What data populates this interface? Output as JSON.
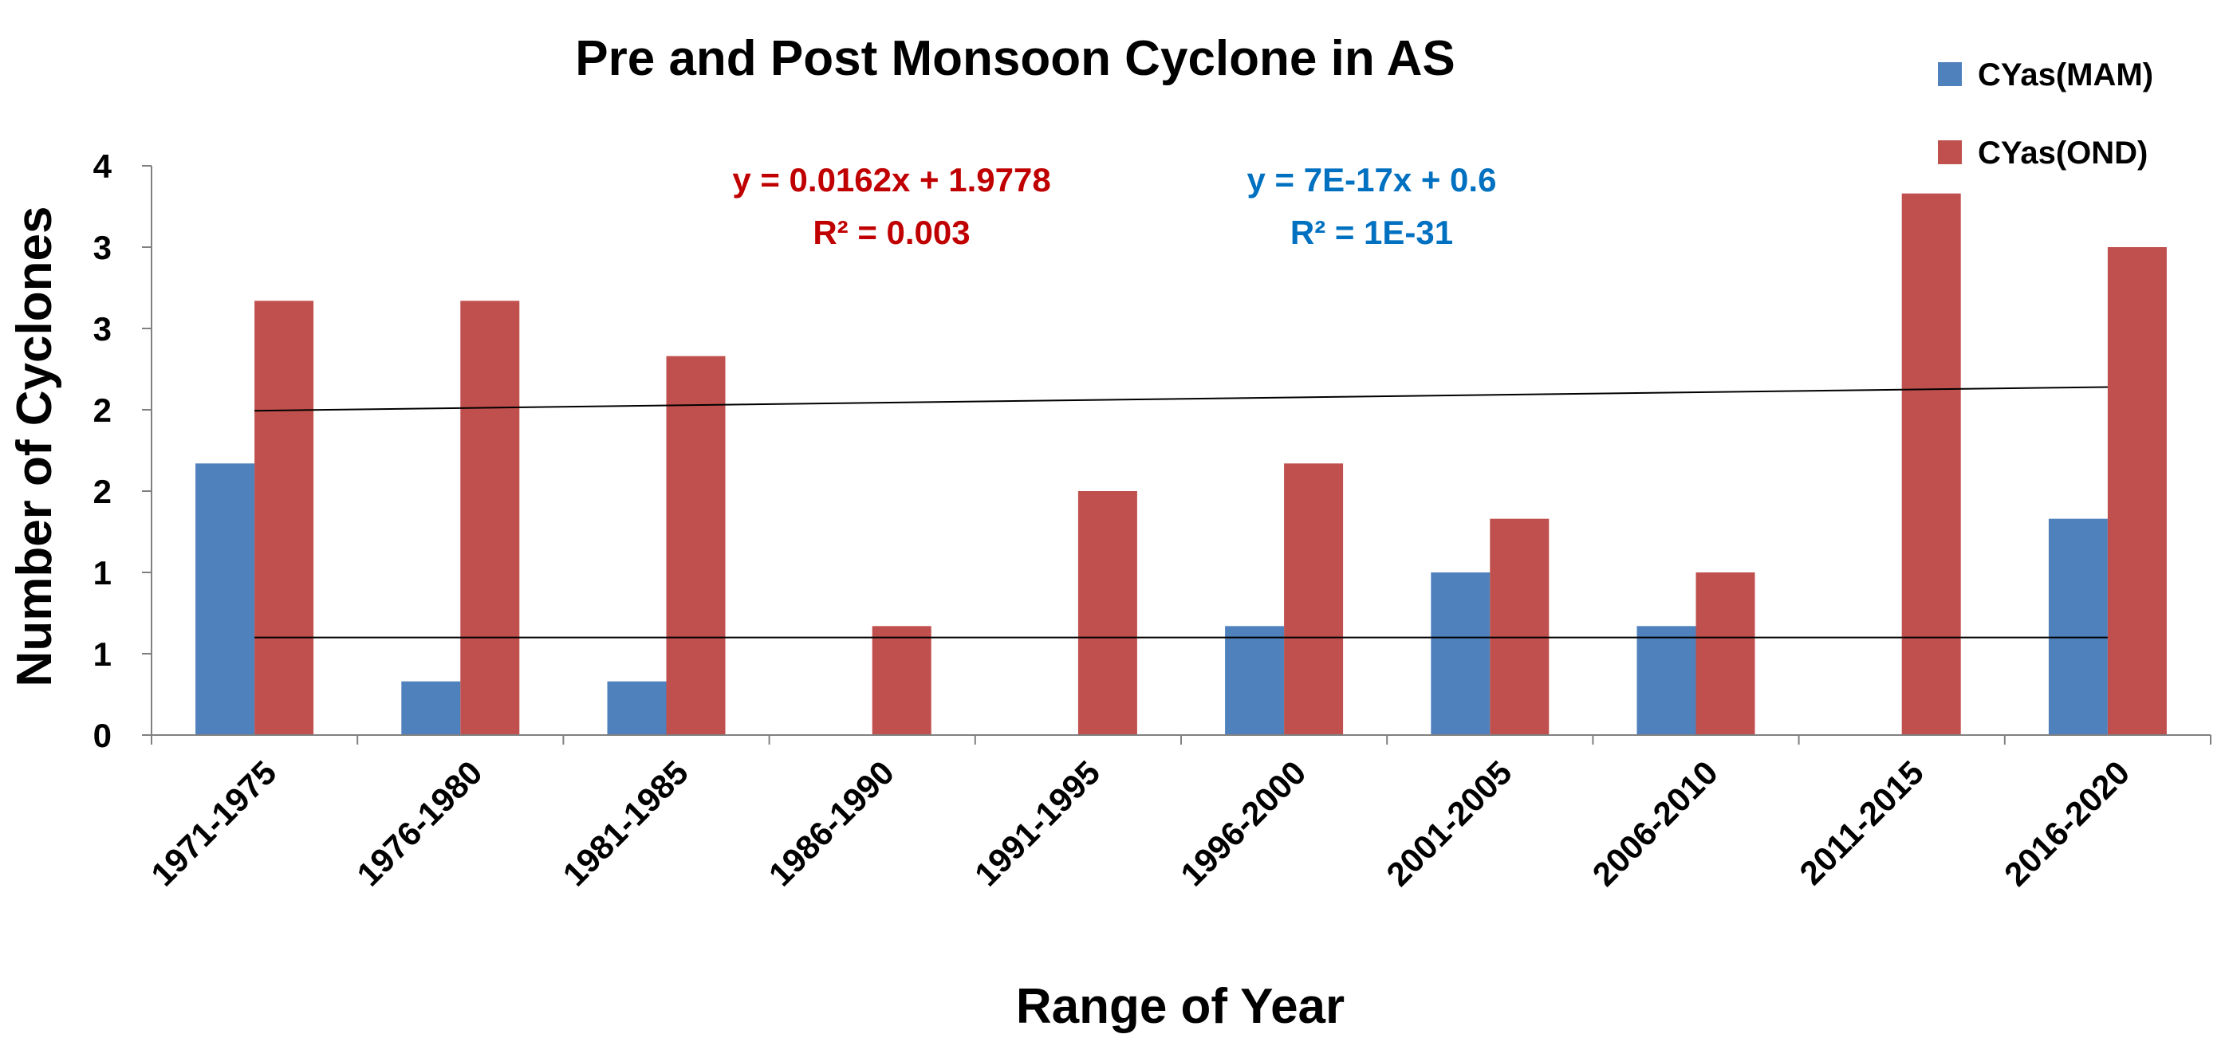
{
  "chart_data": {
    "type": "bar",
    "title": "Pre and Post Monsoon Cyclone in AS",
    "xlabel": "Range of Year",
    "ylabel": "Number of Cyclones",
    "categories": [
      "1971-1975",
      "1976-1980",
      "1981-1985",
      "1986-1990",
      "1991-1995",
      "1996-2000",
      "2001-2005",
      "2006-2010",
      "2011-2015",
      "2016-2020"
    ],
    "series": [
      {
        "name": "CYas(MAM)",
        "color": "#4F81BD",
        "values": [
          1.67,
          0.33,
          0.33,
          0,
          0,
          0.67,
          1.0,
          0.67,
          0,
          1.33
        ]
      },
      {
        "name": "CYas(OND)",
        "color": "#C0504D",
        "values": [
          2.67,
          2.67,
          2.33,
          0.67,
          1.5,
          1.67,
          1.33,
          1.0,
          3.33,
          3.0
        ]
      }
    ],
    "ylim": [
      0,
      3.5
    ],
    "yticks": [
      0,
      0.5,
      1.0,
      1.5,
      2.0,
      2.5,
      3.0,
      3.5
    ],
    "ytick_labels": [
      "0",
      "1",
      "1",
      "2",
      "2",
      "3",
      "3",
      "4"
    ],
    "trendlines": [
      {
        "series": "CYas(OND)",
        "equation": "y = 0.0162x + 1.9778",
        "r2": "R² = 0.003",
        "slope": 0.0162,
        "intercept": 1.9778,
        "color": "#C00000"
      },
      {
        "series": "CYas(MAM)",
        "equation": "y = 7E-17x + 0.6",
        "r2": "R² = 1E-31",
        "slope": 0,
        "intercept": 0.6,
        "color": "#0070C0"
      }
    ],
    "legend_position": "top-right"
  }
}
